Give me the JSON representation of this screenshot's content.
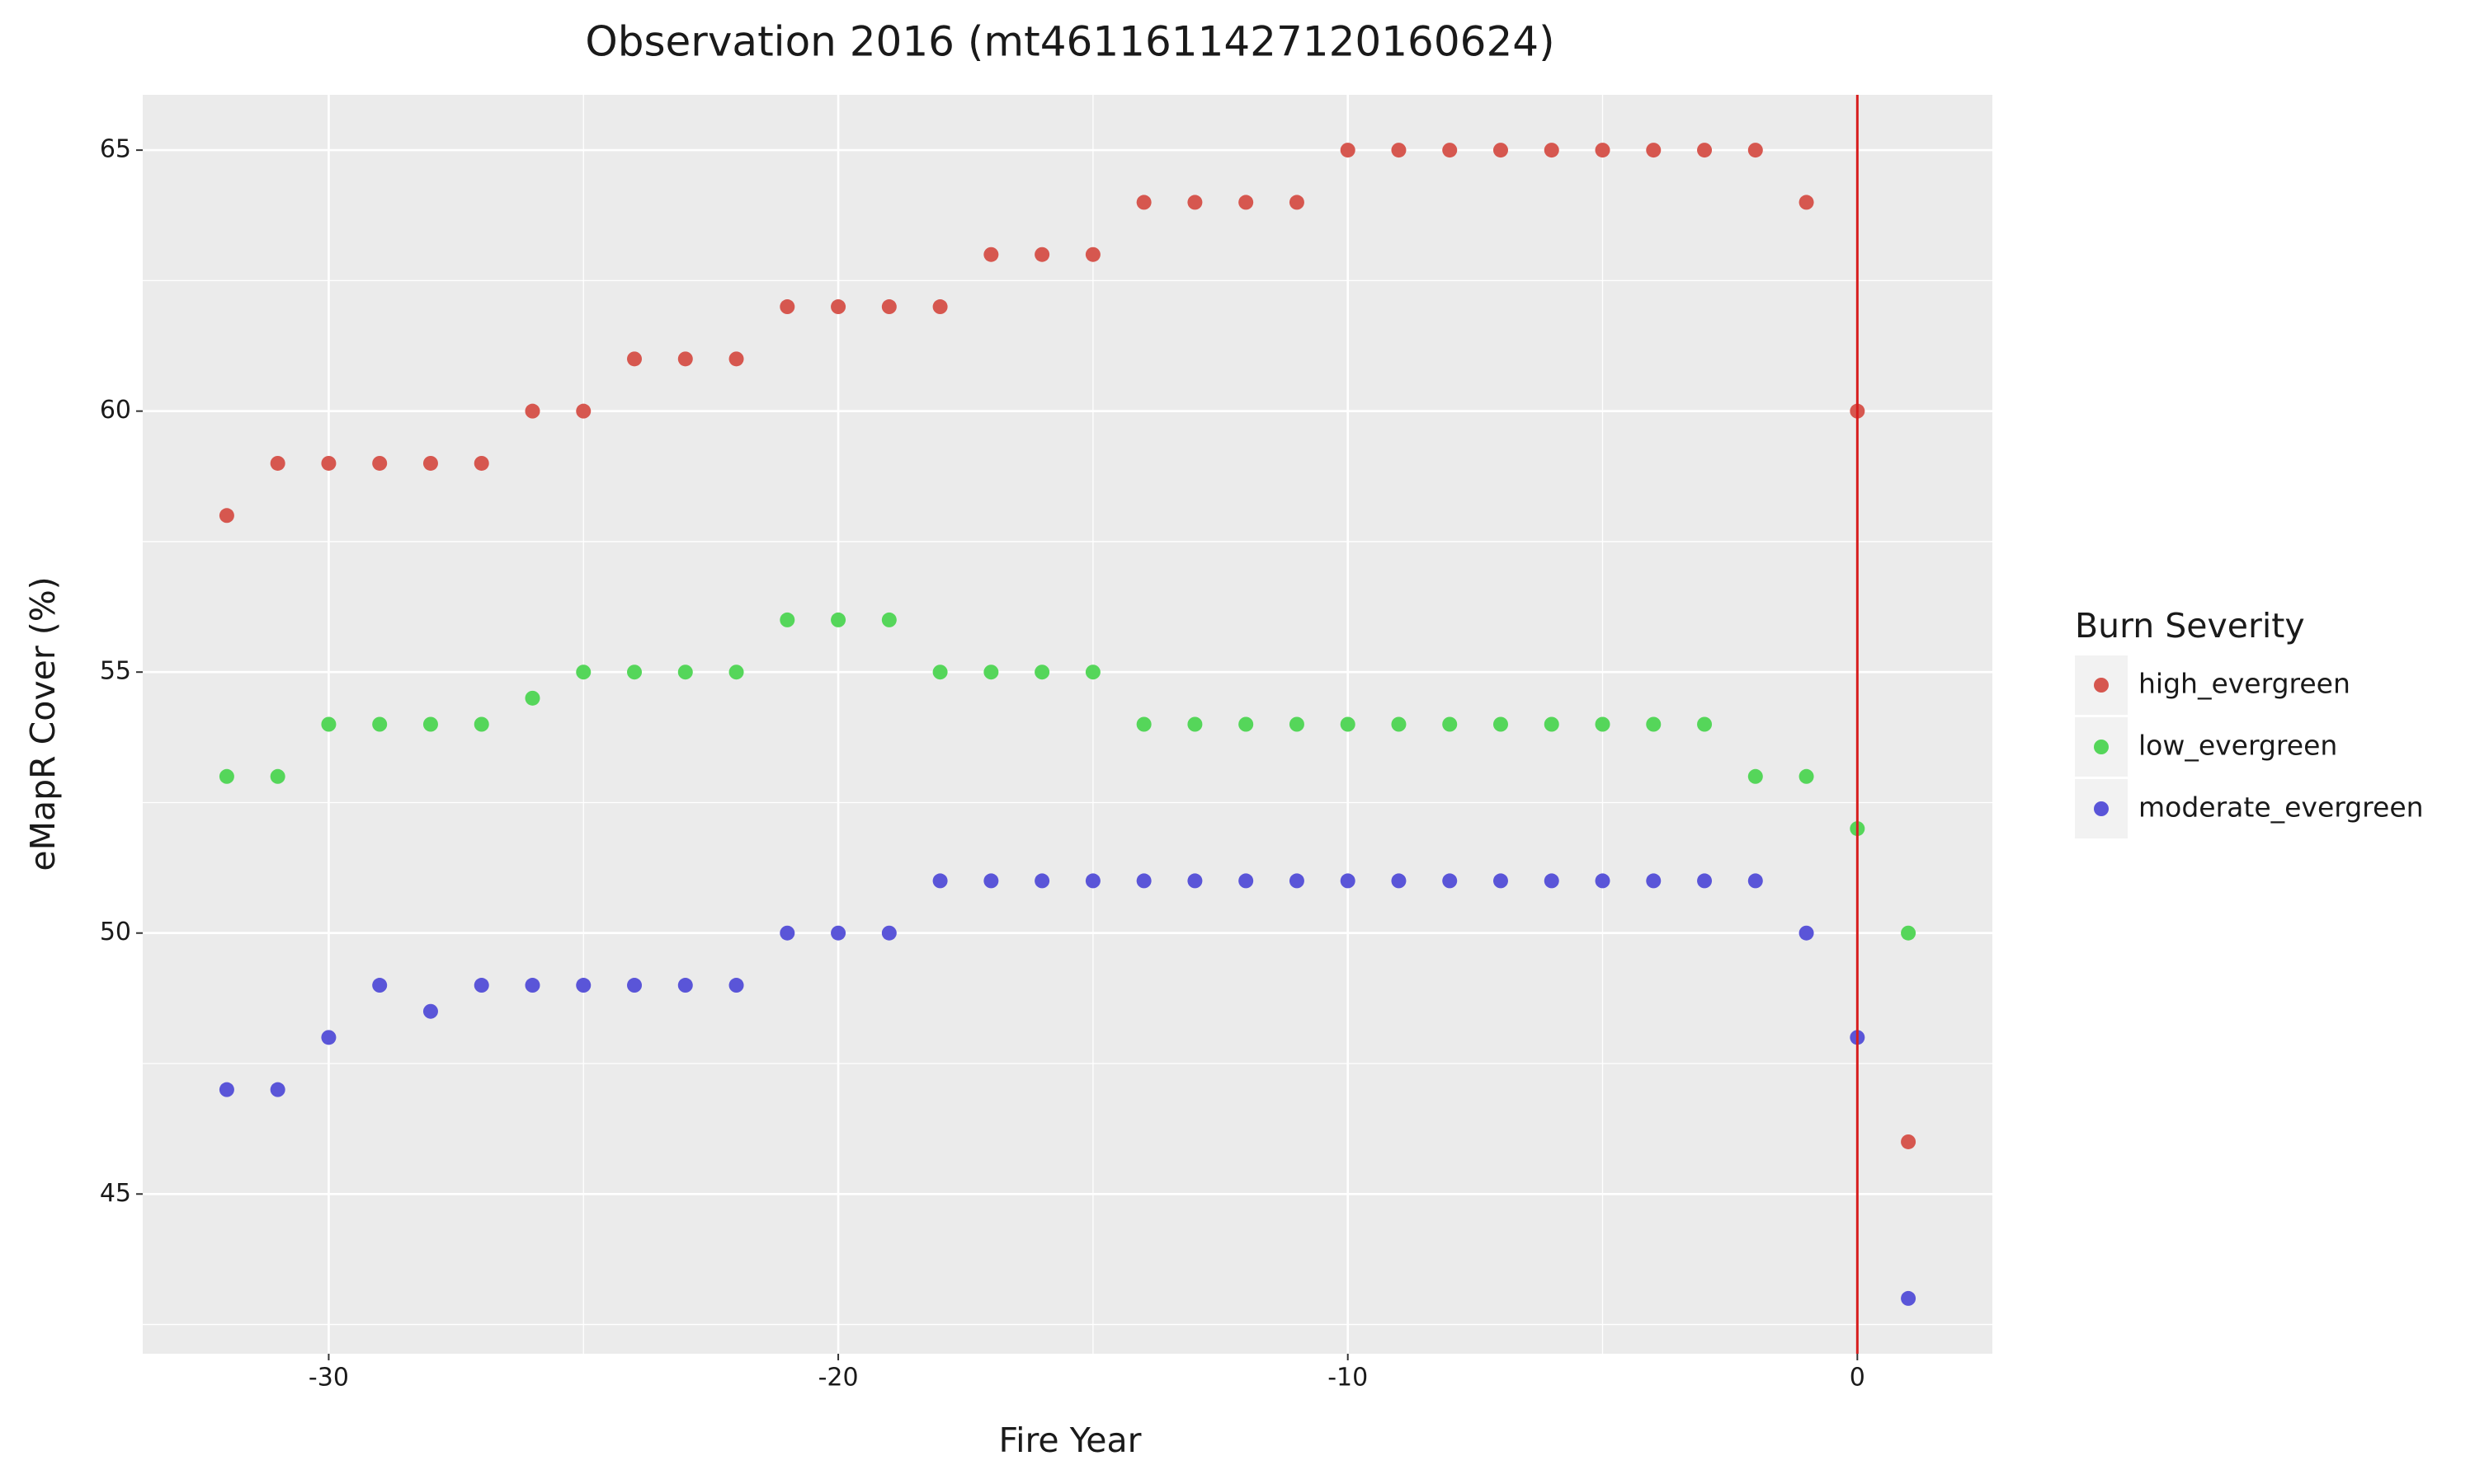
{
  "chart_data": {
    "type": "scatter",
    "title": "Observation 2016 (mt4611611427120160624)",
    "x_label": "Fire Year",
    "y_label": "eMapR Cover (%)",
    "legend_title": "Burn Severity",
    "legend_position": "right",
    "x": [
      -32,
      -31,
      -30,
      -29,
      -28,
      -27,
      -26,
      -25,
      -24,
      -23,
      -22,
      -21,
      -20,
      -19,
      -18,
      -17,
      -16,
      -15,
      -14,
      -13,
      -12,
      -11,
      -10,
      -9,
      -8,
      -7,
      -6,
      -5,
      -4,
      -3,
      -2,
      -1,
      0,
      1
    ],
    "series": [
      {
        "name": "high_evergreen",
        "color": "#d6574f",
        "values": [
          58,
          59,
          59,
          59,
          59,
          59,
          60,
          60,
          61,
          61,
          61,
          62,
          62,
          62,
          62,
          63,
          63,
          63,
          64,
          64,
          64,
          64,
          65,
          65,
          65,
          65,
          65,
          65,
          65,
          65,
          65,
          64,
          60,
          46
        ]
      },
      {
        "name": "low_evergreen",
        "color": "#55d65a",
        "values": [
          53,
          53,
          54,
          54,
          54,
          54,
          54.5,
          55,
          55,
          55,
          55,
          56,
          56,
          56,
          55,
          55,
          55,
          55,
          54,
          54,
          54,
          54,
          54,
          54,
          54,
          54,
          54,
          54,
          54,
          54,
          53,
          53,
          52,
          50
        ]
      },
      {
        "name": "moderate_evergreen",
        "color": "#5a55d8",
        "values": [
          47,
          47,
          48,
          49,
          48.5,
          49,
          49,
          49,
          49,
          49,
          49,
          50,
          50,
          50,
          51,
          51,
          51,
          51,
          51,
          51,
          51,
          51,
          51,
          51,
          51,
          51,
          51,
          51,
          51,
          51,
          51,
          50,
          48,
          43
        ]
      }
    ],
    "xlim": [
      -33.65,
      2.65
    ],
    "xticks": [
      -30,
      -20,
      -10,
      0
    ],
    "xminor": [
      -25,
      -15,
      -5
    ],
    "ylim": [
      41.94,
      66.06
    ],
    "yticks": [
      45,
      50,
      55,
      60,
      65
    ],
    "yminor": [
      42.5,
      47.5,
      52.5,
      57.5,
      62.5
    ],
    "grid": true,
    "vline": {
      "x": 0,
      "color": "#d71d1d"
    }
  }
}
